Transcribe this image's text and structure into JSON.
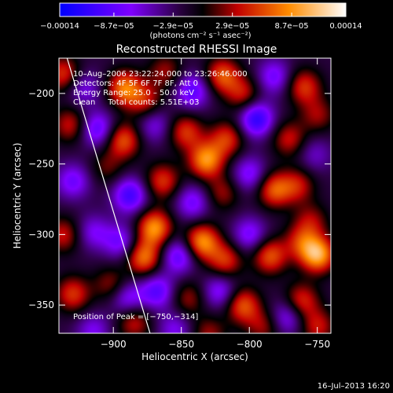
{
  "chart_data": {
    "type": "heatmap",
    "title": "Reconstructed RHESSI Image",
    "xlabel": "Heliocentric X (arcsec)",
    "ylabel": "Heliocentric Y (arcsec)",
    "xlim": [
      -940,
      -740
    ],
    "ylim": [
      -370,
      -175
    ],
    "x_ticks": [
      -900,
      -850,
      -800,
      -750
    ],
    "x_tick_labels": [
      "−900",
      "−850",
      "−800",
      "−750"
    ],
    "y_ticks": [
      -200,
      -250,
      -300,
      -350
    ],
    "y_tick_labels": [
      "−200",
      "−250",
      "−300",
      "−350"
    ],
    "colorbar": {
      "range": [
        -0.00014,
        0.00014
      ],
      "ticks": [
        -0.00014,
        -8.7e-05,
        -2.9e-05,
        2.9e-05,
        8.7e-05,
        0.00014
      ],
      "tick_labels": [
        "−0.00014",
        "−8.7e−05",
        "−2.9e−05",
        "2.9e−05",
        "8.7e−05",
        "0.00014"
      ],
      "unit_label": "(photons cm⁻² s⁻¹ asec⁻²)"
    },
    "annotations": [
      "10–Aug–2006 23:22:24.000 to 23:26:46.000",
      "Detectors: 4F 5F 6F 7F 8F, Att 0",
      "Energy Range: 25.0 – 50.0 keV",
      "Clean     Total counts: 5.51E+03"
    ],
    "peak_label": "Position of Peak = [−750,−314]",
    "peak_position": [
      -750,
      -314
    ],
    "limb_line": [
      [
        -934,
        -175
      ],
      [
        -873,
        -370
      ]
    ],
    "sources": [
      [
        -937,
        -186,
        0.6
      ],
      [
        -922,
        -196,
        -0.4
      ],
      [
        -892,
        -196,
        0.8
      ],
      [
        -877,
        -205,
        0.5
      ],
      [
        -862,
        -184,
        0.4
      ],
      [
        -842,
        -198,
        -0.6
      ],
      [
        -820,
        -187,
        0.7
      ],
      [
        -805,
        -200,
        0.5
      ],
      [
        -782,
        -188,
        -0.5
      ],
      [
        -760,
        -195,
        0.6
      ],
      [
        -750,
        -215,
        0.4
      ],
      [
        -932,
        -222,
        0.5
      ],
      [
        -912,
        -225,
        -0.6
      ],
      [
        -893,
        -233,
        0.7
      ],
      [
        -870,
        -222,
        -0.4
      ],
      [
        -847,
        -227,
        0.6
      ],
      [
        -832,
        -247,
        0.9
      ],
      [
        -817,
        -232,
        0.6
      ],
      [
        -795,
        -218,
        -0.8
      ],
      [
        -771,
        -232,
        0.5
      ],
      [
        -752,
        -243,
        -0.3
      ],
      [
        -930,
        -262,
        -0.5
      ],
      [
        -905,
        -252,
        0.3
      ],
      [
        -888,
        -272,
        -0.7
      ],
      [
        -864,
        -262,
        0.6
      ],
      [
        -870,
        -295,
        0.9
      ],
      [
        -842,
        -277,
        -0.5
      ],
      [
        -820,
        -270,
        0.4
      ],
      [
        -800,
        -257,
        -0.5
      ],
      [
        -782,
        -268,
        0.7
      ],
      [
        -765,
        -265,
        0.5
      ],
      [
        -755,
        -290,
        0.4
      ],
      [
        -937,
        -300,
        0.5
      ],
      [
        -915,
        -298,
        -0.4
      ],
      [
        -895,
        -305,
        -0.5
      ],
      [
        -878,
        -316,
        0.8
      ],
      [
        -852,
        -315,
        -0.6
      ],
      [
        -835,
        -305,
        0.9
      ],
      [
        -818,
        -318,
        0.6
      ],
      [
        -800,
        -300,
        -0.5
      ],
      [
        -785,
        -315,
        0.7
      ],
      [
        -762,
        -305,
        0.5
      ],
      [
        -750,
        -314,
        1.0
      ],
      [
        -930,
        -342,
        0.6
      ],
      [
        -902,
        -335,
        0.4
      ],
      [
        -890,
        -345,
        -0.5
      ],
      [
        -868,
        -340,
        -0.6
      ],
      [
        -845,
        -345,
        0.4
      ],
      [
        -822,
        -340,
        -0.5
      ],
      [
        -805,
        -350,
        0.7
      ],
      [
        -790,
        -365,
        0.4
      ],
      [
        -772,
        -358,
        -0.5
      ],
      [
        -762,
        -347,
        0.6
      ],
      [
        -750,
        -365,
        0.5
      ],
      [
        -915,
        -368,
        -0.4
      ],
      [
        -885,
        -362,
        0.5
      ],
      [
        -855,
        -367,
        -0.4
      ],
      [
        -830,
        -370,
        0.4
      ]
    ]
  },
  "footer": {
    "timestamp": "16–Jul–2013 16:20"
  }
}
